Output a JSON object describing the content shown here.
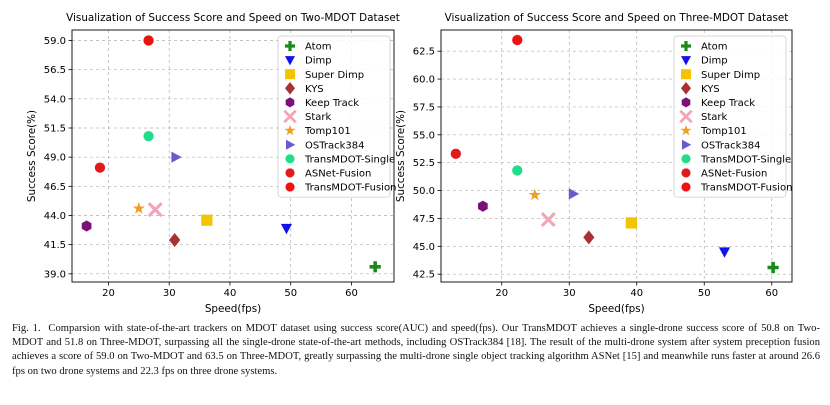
{
  "chart_data": [
    {
      "type": "scatter",
      "title": "Visualization of Success Score and Speed on Two-MDOT Dataset",
      "xlabel": "Speed(fps)",
      "ylabel": "Success Score(%)",
      "xlim": [
        14,
        67
      ],
      "ylim": [
        38.3,
        59.9
      ],
      "xticks": [
        20,
        30,
        40,
        50,
        60
      ],
      "yticks": [
        39.0,
        41.5,
        44.0,
        46.5,
        49.0,
        51.5,
        54.0,
        56.5,
        59.0
      ],
      "tick_format": "fixed1",
      "grid": true,
      "legend": "top-right",
      "series": [
        {
          "name": "Atom",
          "marker": "plus",
          "color": "#1a8a1a",
          "x": 63.9,
          "y": 39.6
        },
        {
          "name": "Dimp",
          "marker": "tri-down",
          "color": "#1111ee",
          "x": 49.3,
          "y": 42.9
        },
        {
          "name": "Super Dimp",
          "marker": "square",
          "color": "#f5c400",
          "x": 36.2,
          "y": 43.6
        },
        {
          "name": "KYS",
          "marker": "diamond",
          "color": "#a83232",
          "x": 30.9,
          "y": 41.9
        },
        {
          "name": "Keep Track",
          "marker": "hexagon",
          "color": "#7a117a",
          "x": 16.4,
          "y": 43.1
        },
        {
          "name": "Stark",
          "marker": "x",
          "color": "#f4a4b8",
          "x": 27.7,
          "y": 44.5
        },
        {
          "name": "Tomp101",
          "marker": "star",
          "color": "#f0a020",
          "x": 25.0,
          "y": 44.6
        },
        {
          "name": "OSTrack384",
          "marker": "tri-right",
          "color": "#6a5acd",
          "x": 31.1,
          "y": 49.0
        },
        {
          "name": "TransMDOT-Single",
          "marker": "circle",
          "color": "#22dd88",
          "x": 26.6,
          "y": 50.8
        },
        {
          "name": "ASNet-Fusion",
          "marker": "circle",
          "color": "#e01b1b",
          "x": 18.6,
          "y": 48.1
        },
        {
          "name": "TransMDOT-Fusion",
          "marker": "circle",
          "color": "#ee1111",
          "x": 26.6,
          "y": 59.0
        }
      ]
    },
    {
      "type": "scatter",
      "title": "Visualization of Success Score and Speed on Three-MDOT Dataset",
      "xlabel": "Speed(fps)",
      "ylabel": "Success Score(%)",
      "xlim": [
        11,
        63
      ],
      "ylim": [
        41.8,
        64.4
      ],
      "xticks": [
        20,
        30,
        40,
        50,
        60
      ],
      "yticks": [
        42.5,
        45.0,
        47.5,
        50.0,
        52.5,
        55.0,
        57.5,
        60.0,
        62.5
      ],
      "tick_format": "fixed1",
      "grid": true,
      "legend": "top-right",
      "series": [
        {
          "name": "Atom",
          "marker": "plus",
          "color": "#1a8a1a",
          "x": 60.2,
          "y": 43.1
        },
        {
          "name": "Dimp",
          "marker": "tri-down",
          "color": "#1111ee",
          "x": 53.0,
          "y": 44.5
        },
        {
          "name": "Super Dimp",
          "marker": "square",
          "color": "#f5c400",
          "x": 39.2,
          "y": 47.1
        },
        {
          "name": "KYS",
          "marker": "diamond",
          "color": "#a83232",
          "x": 32.9,
          "y": 45.8
        },
        {
          "name": "Keep Track",
          "marker": "hexagon",
          "color": "#7a117a",
          "x": 17.2,
          "y": 48.6
        },
        {
          "name": "Stark",
          "marker": "x",
          "color": "#f4a4b8",
          "x": 26.9,
          "y": 47.4
        },
        {
          "name": "Tomp101",
          "marker": "star",
          "color": "#f0a020",
          "x": 24.9,
          "y": 49.6
        },
        {
          "name": "OSTrack384",
          "marker": "tri-right",
          "color": "#6a5acd",
          "x": 30.6,
          "y": 49.7
        },
        {
          "name": "TransMDOT-Single",
          "marker": "circle",
          "color": "#22dd88",
          "x": 22.3,
          "y": 51.8
        },
        {
          "name": "ASNet-Fusion",
          "marker": "circle",
          "color": "#e01b1b",
          "x": 13.2,
          "y": 53.3
        },
        {
          "name": "TransMDOT-Fusion",
          "marker": "circle",
          "color": "#ee1111",
          "x": 22.3,
          "y": 63.5
        }
      ]
    }
  ],
  "caption": {
    "label": "Fig. 1.",
    "text": "Comparsion with state-of-the-art trackers on MDOT dataset using success score(AUC) and speed(fps). Our TransMDOT achieves a single-drone success score of 50.8 on Two-MDOT and 51.8 on Three-MDOT, surpassing all the single-drone state-of-the-art methods, including OSTrack384 [18]. The result of the multi-drone system after system preception fusion achieves a score of 59.0 on Two-MDOT and 63.5 on Three-MDOT, greatly surpassing the multi-drone single object tracking algorithm ASNet [15] and meanwhile runs faster at around 26.6 fps on two drone systems and 22.3 fps on three drone systems."
  }
}
